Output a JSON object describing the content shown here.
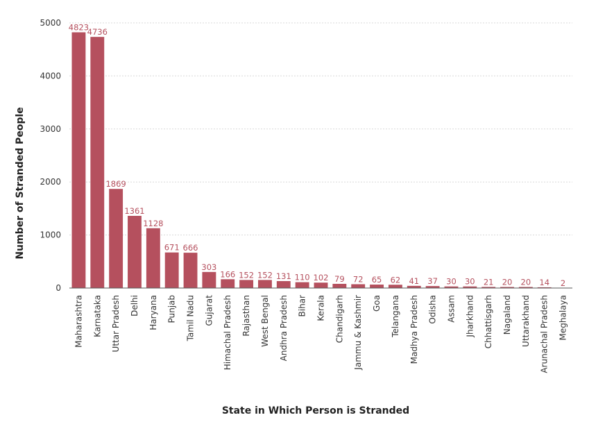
{
  "chart_data": {
    "type": "bar",
    "xlabel": "State in Which Person is Stranded",
    "ylabel": "Number of Stranded People",
    "ylim": [
      0,
      5000
    ],
    "yticks": [
      0,
      1000,
      2000,
      3000,
      4000,
      5000
    ],
    "grid": true,
    "colors": {
      "bar": "#b5505e",
      "label": "#b5505e"
    },
    "categories": [
      "Maharashtra",
      "Karnataka",
      "Uttar Pradesh",
      "Delhi",
      "Haryana",
      "Punjab",
      "Tamil Nadu",
      "Gujarat",
      "Himachal Pradesh",
      "Rajasthan",
      "West Bengal",
      "Andhra Pradesh",
      "Bihar",
      "Kerala",
      "Chandigarh",
      "Jammu & Kashmir",
      "Goa",
      "Telangana",
      "Madhya Pradesh",
      "Odisha",
      "Assam",
      "Jharkhand",
      "Chhattisgarh",
      "Nagaland",
      "Uttarakhand",
      "Arunachal Pradesh",
      "Meghalaya"
    ],
    "values": [
      4823,
      4736,
      1869,
      1361,
      1128,
      671,
      666,
      303,
      166,
      152,
      152,
      131,
      110,
      102,
      79,
      72,
      65,
      62,
      41,
      37,
      30,
      30,
      21,
      20,
      20,
      14,
      2
    ]
  }
}
